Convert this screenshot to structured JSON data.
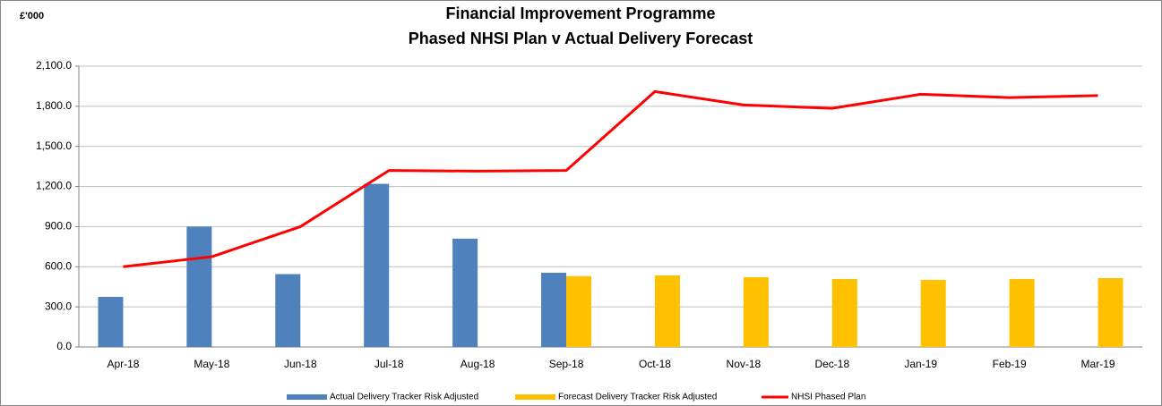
{
  "chart_data": {
    "type": "bar_line",
    "title": "Financial Improvement Programme",
    "subtitle": "Phased NHSI Plan v Actual Delivery Forecast",
    "y_label": "£'000",
    "categories": [
      "Apr-18",
      "May-18",
      "Jun-18",
      "Jul-18",
      "Aug-18",
      "Sep-18",
      "Oct-18",
      "Nov-18",
      "Dec-18",
      "Jan-19",
      "Feb-19",
      "Mar-19"
    ],
    "series": [
      {
        "name": "Actual Delivery Tracker Risk Adjusted",
        "type": "bar",
        "color": "#4f81bd",
        "values": [
          375,
          900,
          545,
          1220,
          810,
          555,
          null,
          null,
          null,
          null,
          null,
          null
        ]
      },
      {
        "name": "Forecast Delivery Tracker Risk Adjusted",
        "type": "bar",
        "color": "#ffc000",
        "values": [
          null,
          null,
          null,
          null,
          null,
          530,
          535,
          522,
          508,
          502,
          508,
          515
        ]
      },
      {
        "name": "NHSI Phased Plan",
        "type": "line",
        "color": "#ff0000",
        "values": [
          600,
          675,
          900,
          1320,
          1315,
          1320,
          1910,
          1810,
          1785,
          1890,
          1865,
          1880
        ]
      }
    ],
    "ylim": [
      0,
      2100
    ],
    "yticks": [
      {
        "value": 0,
        "label": "0.0"
      },
      {
        "value": 300,
        "label": "300.0"
      },
      {
        "value": 600,
        "label": "600.0"
      },
      {
        "value": 900,
        "label": "900.0"
      },
      {
        "value": 1200,
        "label": "1,200.0"
      },
      {
        "value": 1500,
        "label": "1,500.0"
      },
      {
        "value": 1800,
        "label": "1,800.0"
      },
      {
        "value": 2100,
        "label": "2,100.0"
      }
    ],
    "grid": true,
    "legend": "bottom"
  }
}
